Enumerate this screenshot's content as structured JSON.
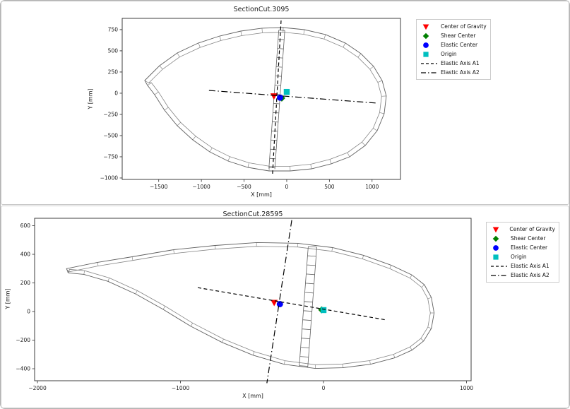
{
  "page": {
    "background": "#ffffff",
    "panel_border_color": "#c9c9c9",
    "text_color": "#1a1a1a"
  },
  "chart_data": [
    {
      "type": "scatter",
      "title": "SectionCut.3095",
      "xlabel": "X [mm]",
      "ylabel": "Y [mm]",
      "xlim": [
        -1928,
        1333
      ],
      "ylim": [
        -1017,
        883
      ],
      "xticks": [
        -1500,
        -1000,
        -500,
        0,
        500,
        1000
      ],
      "yticks": [
        750,
        500,
        250,
        0,
        -250,
        -500,
        -750,
        -1000
      ],
      "grid": false,
      "legend_position": "outside-upper-right",
      "legend": [
        {
          "label": "Center of Gravity",
          "marker": "triangle-down",
          "color": "#ff0000"
        },
        {
          "label": "Shear Center",
          "marker": "diamond",
          "color": "#008000"
        },
        {
          "label": "Elastic Center",
          "marker": "circle",
          "color": "#0000ff"
        },
        {
          "label": "Origin",
          "marker": "square",
          "color": "#00bfbf"
        },
        {
          "label": "Elastic Axis A1",
          "line": "dashed",
          "color": "#000000"
        },
        {
          "label": "Elastic Axis A2",
          "line": "dashdot",
          "color": "#000000"
        }
      ],
      "markers": [
        {
          "name": "center-of-gravity",
          "label": "Center of Gravity",
          "marker": "triangle-down",
          "color": "#ff0000",
          "x": -150,
          "y": -35
        },
        {
          "name": "shear-center",
          "label": "Shear Center",
          "marker": "diamond",
          "color": "#008000",
          "x": -58,
          "y": -58
        },
        {
          "name": "elastic-center",
          "label": "Elastic Center",
          "marker": "circle",
          "color": "#0000ff",
          "x": -78,
          "y": -52
        },
        {
          "name": "origin",
          "label": "Origin",
          "marker": "square",
          "color": "#00bfbf",
          "x": 0,
          "y": 15
        }
      ],
      "elastic_axes": [
        {
          "name": "elastic-axis-a1",
          "label": "Elastic Axis A1",
          "style": "dashed",
          "x1": -66,
          "y1": 858,
          "x2": -166,
          "y2": -950
        },
        {
          "name": "elastic-axis-a2",
          "label": "Elastic Axis A2",
          "style": "dashdot",
          "x1": -911,
          "y1": 33,
          "x2": 1060,
          "y2": -117
        }
      ],
      "section": {
        "color": "#606060",
        "shell_thickness_mm": 55,
        "web": {
          "x1": -58,
          "y1": 742,
          "x2": -174,
          "y2": -892,
          "width_mm": 70
        },
        "outline": [
          [
            -1664,
            150
          ],
          [
            -1490,
            325
          ],
          [
            -1283,
            475
          ],
          [
            -1035,
            592
          ],
          [
            -786,
            675
          ],
          [
            -538,
            733
          ],
          [
            -290,
            767
          ],
          [
            -41,
            775
          ],
          [
            207,
            750
          ],
          [
            455,
            692
          ],
          [
            687,
            592
          ],
          [
            869,
            467
          ],
          [
            1018,
            317
          ],
          [
            1118,
            150
          ],
          [
            1167,
            -33
          ],
          [
            1142,
            -242
          ],
          [
            1060,
            -442
          ],
          [
            919,
            -617
          ],
          [
            737,
            -750
          ],
          [
            521,
            -833
          ],
          [
            290,
            -892
          ],
          [
            41,
            -917
          ],
          [
            -207,
            -917
          ],
          [
            -455,
            -875
          ],
          [
            -687,
            -800
          ],
          [
            -902,
            -692
          ],
          [
            -1101,
            -550
          ],
          [
            -1283,
            -383
          ],
          [
            -1432,
            -200
          ],
          [
            -1548,
            -17
          ],
          [
            -1631,
            92
          ]
        ]
      }
    },
    {
      "type": "scatter",
      "title": "SectionCut.28595",
      "xlabel": "X [mm]",
      "ylabel": "Y [mm]",
      "xlim": [
        -2020,
        1032
      ],
      "ylim": [
        -484,
        652
      ],
      "xticks": [
        -2000,
        -1000,
        0,
        1000
      ],
      "yticks": [
        600,
        400,
        200,
        0,
        -200,
        -400
      ],
      "grid": false,
      "legend_position": "outside-upper-right",
      "legend": [
        {
          "label": "Center of Gravity",
          "marker": "triangle-down",
          "color": "#ff0000"
        },
        {
          "label": "Shear Center",
          "marker": "diamond",
          "color": "#008000"
        },
        {
          "label": "Elastic Center",
          "marker": "circle",
          "color": "#0000ff"
        },
        {
          "label": "Origin",
          "marker": "square",
          "color": "#00bfbf"
        },
        {
          "label": "Elastic Axis A1",
          "line": "dashed",
          "color": "#000000"
        },
        {
          "label": "Elastic Axis A2",
          "line": "dashdot",
          "color": "#000000"
        }
      ],
      "markers": [
        {
          "name": "center-of-gravity",
          "label": "Center of Gravity",
          "marker": "triangle-down",
          "color": "#ff0000",
          "x": -345,
          "y": 62
        },
        {
          "name": "shear-center",
          "label": "Shear Center",
          "marker": "diamond",
          "color": "#008000",
          "x": -13,
          "y": 12
        },
        {
          "name": "elastic-center",
          "label": "Elastic Center",
          "marker": "circle",
          "color": "#0000ff",
          "x": -305,
          "y": 52
        },
        {
          "name": "origin",
          "label": "Origin",
          "marker": "square",
          "color": "#00bfbf",
          "x": 0,
          "y": 10
        }
      ],
      "elastic_axes": [
        {
          "name": "elastic-axis-a1",
          "label": "Elastic Axis A1",
          "style": "dashed",
          "x1": -879,
          "y1": 167,
          "x2": 440,
          "y2": -59
        },
        {
          "name": "elastic-axis-a2",
          "label": "Elastic Axis A2",
          "style": "dashdot",
          "x1": -222,
          "y1": 639,
          "x2": -396,
          "y2": -501
        }
      ],
      "section": {
        "color": "#606060",
        "shell_thickness_mm": 26,
        "web": {
          "x1": -77,
          "y1": 452,
          "x2": -140,
          "y2": -388,
          "width_mm": 60
        },
        "outline": [
          [
            -1797,
            300
          ],
          [
            -1580,
            344
          ],
          [
            -1338,
            383
          ],
          [
            -1048,
            432
          ],
          [
            -758,
            462
          ],
          [
            -469,
            482
          ],
          [
            -179,
            477
          ],
          [
            63,
            447
          ],
          [
            280,
            393
          ],
          [
            473,
            324
          ],
          [
            618,
            256
          ],
          [
            705,
            187
          ],
          [
            754,
            98
          ],
          [
            773,
            -10
          ],
          [
            754,
            -118
          ],
          [
            700,
            -206
          ],
          [
            618,
            -270
          ],
          [
            498,
            -324
          ],
          [
            328,
            -369
          ],
          [
            135,
            -393
          ],
          [
            -58,
            -398
          ],
          [
            -275,
            -369
          ],
          [
            -493,
            -305
          ],
          [
            -710,
            -216
          ],
          [
            -928,
            -103
          ],
          [
            -1121,
            15
          ],
          [
            -1314,
            123
          ],
          [
            -1507,
            211
          ],
          [
            -1676,
            260
          ],
          [
            -1783,
            270
          ]
        ]
      }
    }
  ]
}
